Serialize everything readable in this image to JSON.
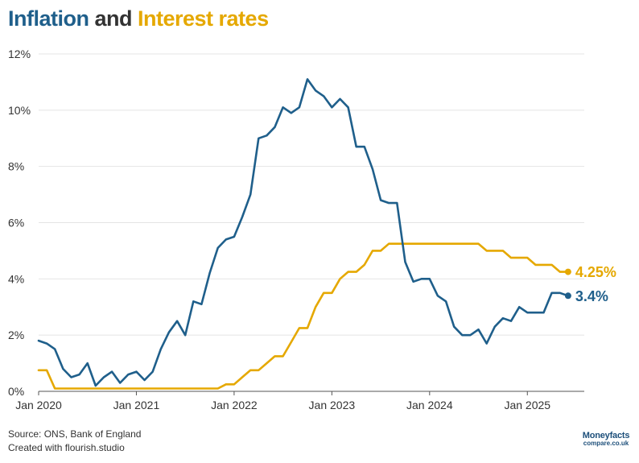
{
  "title": {
    "part1": "Inflation",
    "part2": " and ",
    "part3": "Interest rates"
  },
  "footer": {
    "source": "Source: ONS, Bank of England",
    "credit": "Created with flourish.studio"
  },
  "logo": {
    "line1": "Moneyfacts",
    "line2": "compare.co.uk"
  },
  "colors": {
    "inflation": "#1f5f8b",
    "interest": "#e5a800",
    "grid": "#e4e4e4",
    "axis": "#555555",
    "text": "#333333"
  },
  "chart_data": {
    "type": "line",
    "title": "Inflation and Interest rates",
    "xlabel": "",
    "ylabel": "",
    "x_start": "Jan 2020",
    "x_unit": "month index (0 = Jan 2020)",
    "xlim": [
      0,
      66
    ],
    "ylim": [
      0,
      12
    ],
    "yticks": [
      0,
      2,
      4,
      6,
      8,
      10,
      12
    ],
    "ytick_labels": [
      "0%",
      "2%",
      "4%",
      "6%",
      "8%",
      "10%",
      "12%"
    ],
    "xticks": [
      0,
      12,
      24,
      36,
      48,
      60
    ],
    "xtick_labels": [
      "Jan 2020",
      "Jan 2021",
      "Jan 2022",
      "Jan 2023",
      "Jan 2024",
      "Jan 2025"
    ],
    "series": [
      {
        "name": "Inflation",
        "color": "#1f5f8b",
        "end_label": "3.4%",
        "x": [
          0,
          1,
          2,
          3,
          4,
          5,
          6,
          7,
          8,
          9,
          10,
          11,
          12,
          13,
          14,
          15,
          16,
          17,
          18,
          19,
          20,
          21,
          22,
          23,
          24,
          25,
          26,
          27,
          28,
          29,
          30,
          31,
          32,
          33,
          34,
          35,
          36,
          37,
          38,
          39,
          40,
          41,
          42,
          43,
          44,
          45,
          46,
          47,
          48,
          49,
          50,
          51,
          52,
          53,
          54,
          55,
          56,
          57,
          58,
          59,
          60,
          61,
          62,
          63,
          64,
          65
        ],
        "values": [
          1.8,
          1.7,
          1.5,
          0.8,
          0.5,
          0.6,
          1.0,
          0.2,
          0.5,
          0.7,
          0.3,
          0.6,
          0.7,
          0.4,
          0.7,
          1.5,
          2.1,
          2.5,
          2.0,
          3.2,
          3.1,
          4.2,
          5.1,
          5.4,
          5.5,
          6.2,
          7.0,
          9.0,
          9.1,
          9.4,
          10.1,
          9.9,
          10.1,
          11.1,
          10.7,
          10.5,
          10.1,
          10.4,
          10.1,
          8.7,
          8.7,
          7.9,
          6.8,
          6.7,
          6.7,
          4.6,
          3.9,
          4.0,
          4.0,
          3.4,
          3.2,
          2.3,
          2.0,
          2.0,
          2.2,
          1.7,
          2.3,
          2.6,
          2.5,
          3.0,
          2.8,
          2.8,
          2.8,
          3.5,
          3.5,
          3.4
        ]
      },
      {
        "name": "Interest rates",
        "color": "#e5a800",
        "end_label": "4.25%",
        "x": [
          0,
          1,
          2,
          3,
          4,
          5,
          6,
          7,
          8,
          9,
          10,
          11,
          12,
          13,
          14,
          15,
          16,
          17,
          18,
          19,
          20,
          21,
          22,
          23,
          24,
          25,
          26,
          27,
          28,
          29,
          30,
          31,
          32,
          33,
          34,
          35,
          36,
          37,
          38,
          39,
          40,
          41,
          42,
          43,
          44,
          45,
          46,
          47,
          48,
          49,
          50,
          51,
          52,
          53,
          54,
          55,
          56,
          57,
          58,
          59,
          60,
          61,
          62,
          63,
          64,
          65
        ],
        "values": [
          0.75,
          0.75,
          0.1,
          0.1,
          0.1,
          0.1,
          0.1,
          0.1,
          0.1,
          0.1,
          0.1,
          0.1,
          0.1,
          0.1,
          0.1,
          0.1,
          0.1,
          0.1,
          0.1,
          0.1,
          0.1,
          0.1,
          0.1,
          0.25,
          0.25,
          0.5,
          0.75,
          0.75,
          1.0,
          1.25,
          1.25,
          1.75,
          2.25,
          2.25,
          3.0,
          3.5,
          3.5,
          4.0,
          4.25,
          4.25,
          4.5,
          5.0,
          5.0,
          5.25,
          5.25,
          5.25,
          5.25,
          5.25,
          5.25,
          5.25,
          5.25,
          5.25,
          5.25,
          5.25,
          5.25,
          5.0,
          5.0,
          5.0,
          4.75,
          4.75,
          4.75,
          4.5,
          4.5,
          4.5,
          4.25,
          4.25
        ]
      }
    ]
  }
}
